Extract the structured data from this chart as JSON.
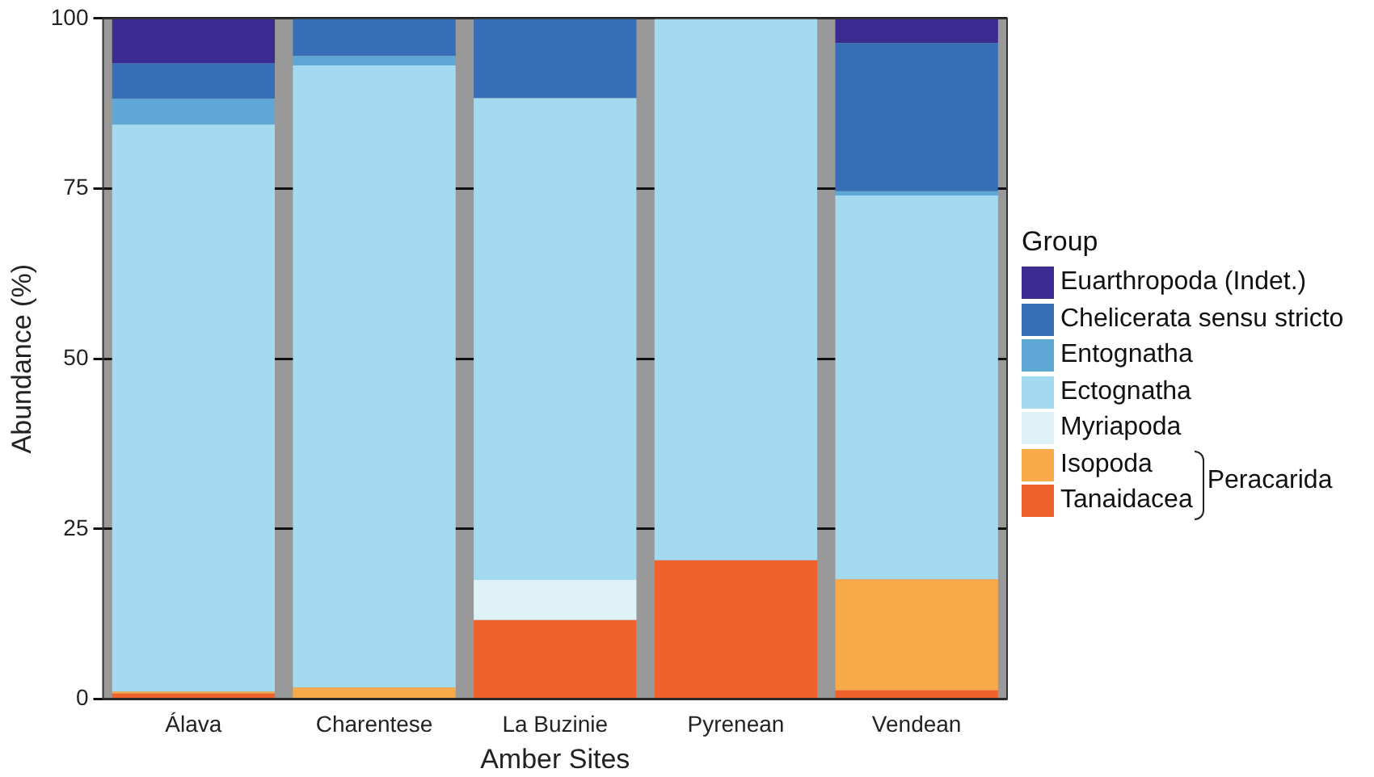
{
  "chart_data": {
    "type": "bar",
    "stacked": true,
    "xlabel": "Amber Sites",
    "ylabel": "Abundance (%)",
    "legend_title": "Group",
    "legend": "right",
    "grid": "y",
    "categories": [
      "Álava",
      "Charentese",
      "La Buzinie",
      "Pyrenean",
      "Vendean"
    ],
    "ylim": [
      0,
      100
    ],
    "yticks": [
      0,
      25,
      50,
      75,
      100
    ],
    "series": [
      {
        "name": "Tanaidacea",
        "color": "#f0622d",
        "values": [
          0.8,
          0,
          11.6,
          20.4,
          1.3
        ]
      },
      {
        "name": "Isopoda",
        "color": "#f8aa4b",
        "values": [
          0.3,
          1.7,
          0,
          0,
          16.3
        ]
      },
      {
        "name": "Myriapoda",
        "color": "#def2f8",
        "values": [
          0,
          0,
          5.9,
          0,
          0
        ]
      },
      {
        "name": "Ectognatha",
        "color": "#a4daef",
        "values": [
          83.3,
          91.4,
          70.8,
          79.6,
          56.4
        ]
      },
      {
        "name": "Entognatha",
        "color": "#5fa8d6",
        "values": [
          3.8,
          1.4,
          0,
          0,
          0.6
        ]
      },
      {
        "name": "Chelicerata sensu stricto",
        "color": "#386eb5",
        "values": [
          5.2,
          5.5,
          11.7,
          0,
          21.8
        ]
      },
      {
        "name": "Euarthropoda (Indet.)",
        "color": "#3b2a8f",
        "values": [
          6.6,
          0,
          0,
          0,
          3.6
        ]
      }
    ],
    "annotations": [
      "Peracarida"
    ]
  }
}
